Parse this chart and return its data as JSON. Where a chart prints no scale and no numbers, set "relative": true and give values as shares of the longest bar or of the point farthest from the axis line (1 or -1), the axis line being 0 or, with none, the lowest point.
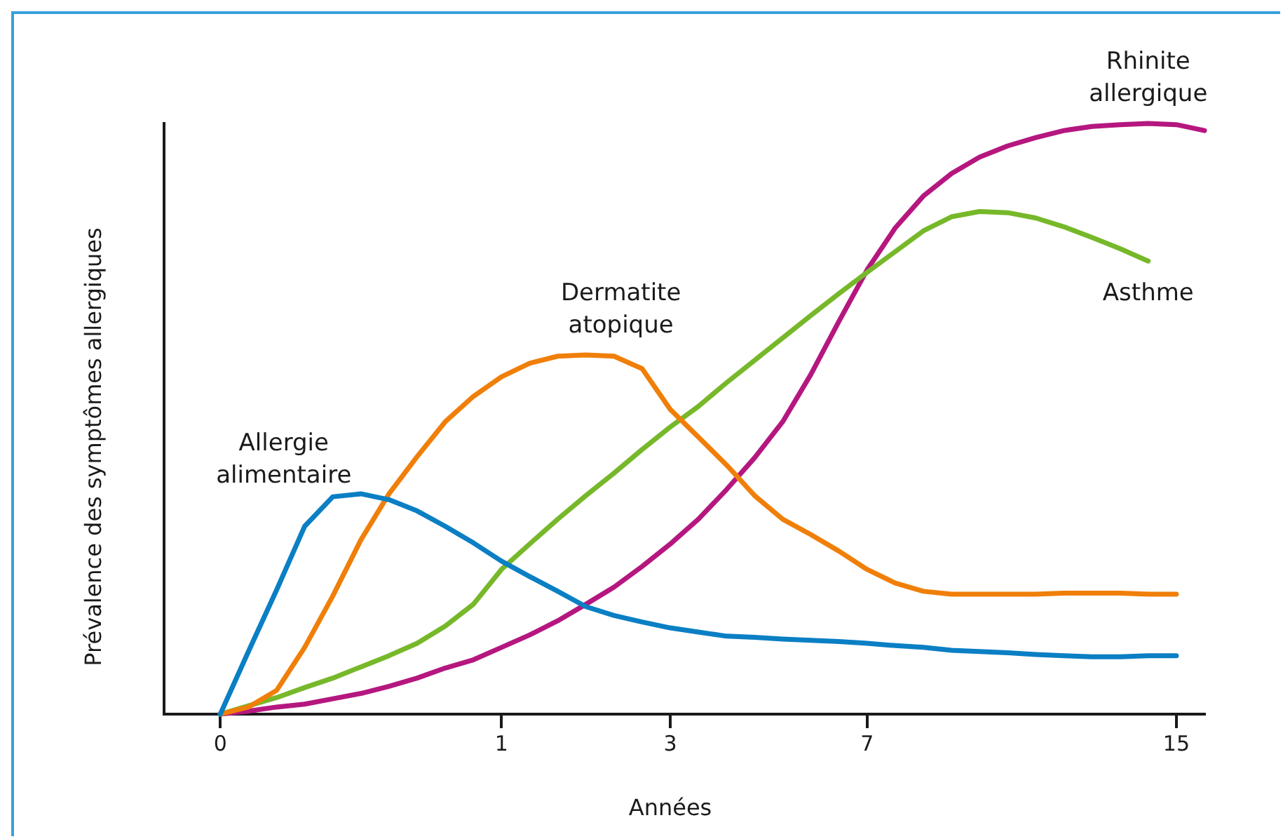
{
  "chart_data": {
    "type": "line",
    "relative": true,
    "xlabel": "Années",
    "ylabel": "Prévalence des symptômes allergiques",
    "categories": [
      null,
      null,
      "0",
      null,
      null,
      null,
      null,
      null,
      null,
      null,
      null,
      null,
      "1",
      null,
      null,
      null,
      null,
      null,
      "3",
      null,
      null,
      null,
      null,
      null,
      null,
      "7",
      null,
      null,
      null,
      null,
      null,
      null,
      null,
      null,
      null,
      null,
      "15",
      null
    ],
    "grid": false,
    "legend": false,
    "marker": "none",
    "line_style": "solid",
    "series": [
      {
        "name": "Allergie alimentaire",
        "color": "#0a7fc4",
        "values": [
          null,
          null,
          0,
          0.106,
          0.21,
          0.318,
          0.368,
          0.373,
          0.363,
          0.344,
          0.318,
          0.29,
          0.259,
          0.233,
          0.208,
          0.182,
          0.167,
          0.156,
          0.146,
          0.139,
          0.132,
          0.13,
          0.127,
          0.125,
          0.123,
          0.12,
          0.116,
          0.113,
          0.108,
          0.106,
          0.104,
          0.101,
          0.099,
          0.097,
          0.097,
          0.099,
          0.099,
          null
        ]
      },
      {
        "name": "Dermatite atopique",
        "color": "#f07f09",
        "values": [
          null,
          null,
          0,
          0.012,
          0.04,
          0.113,
          0.2,
          0.295,
          0.373,
          0.436,
          0.495,
          0.538,
          0.571,
          0.594,
          0.606,
          0.608,
          0.606,
          0.585,
          0.516,
          0.469,
          0.422,
          0.37,
          0.33,
          0.304,
          0.276,
          0.245,
          0.222,
          0.208,
          0.203,
          0.203,
          0.203,
          0.203,
          0.205,
          0.205,
          0.205,
          0.203,
          0.203,
          null
        ]
      },
      {
        "name": "Asthme",
        "color": "#77b82a",
        "values": [
          null,
          null,
          0,
          0.014,
          0.028,
          0.045,
          0.061,
          0.08,
          0.099,
          0.12,
          0.149,
          0.186,
          0.245,
          0.288,
          0.33,
          0.37,
          0.408,
          0.448,
          0.486,
          0.521,
          0.561,
          0.599,
          0.637,
          0.675,
          0.712,
          0.748,
          0.783,
          0.818,
          0.842,
          0.851,
          0.849,
          0.84,
          0.825,
          0.807,
          0.788,
          0.767,
          null,
          null
        ]
      },
      {
        "name": "Rhinite allergique",
        "color": "#b5177f",
        "values": [
          null,
          null,
          0,
          0.005,
          0.012,
          0.017,
          0.026,
          0.035,
          0.047,
          0.061,
          0.078,
          0.092,
          0.113,
          0.134,
          0.158,
          0.186,
          0.215,
          0.25,
          0.288,
          0.33,
          0.38,
          0.434,
          0.495,
          0.575,
          0.665,
          0.752,
          0.823,
          0.877,
          0.915,
          0.943,
          0.962,
          0.976,
          0.988,
          0.995,
          0.998,
          1,
          0.998,
          0.988
        ]
      }
    ]
  }
}
